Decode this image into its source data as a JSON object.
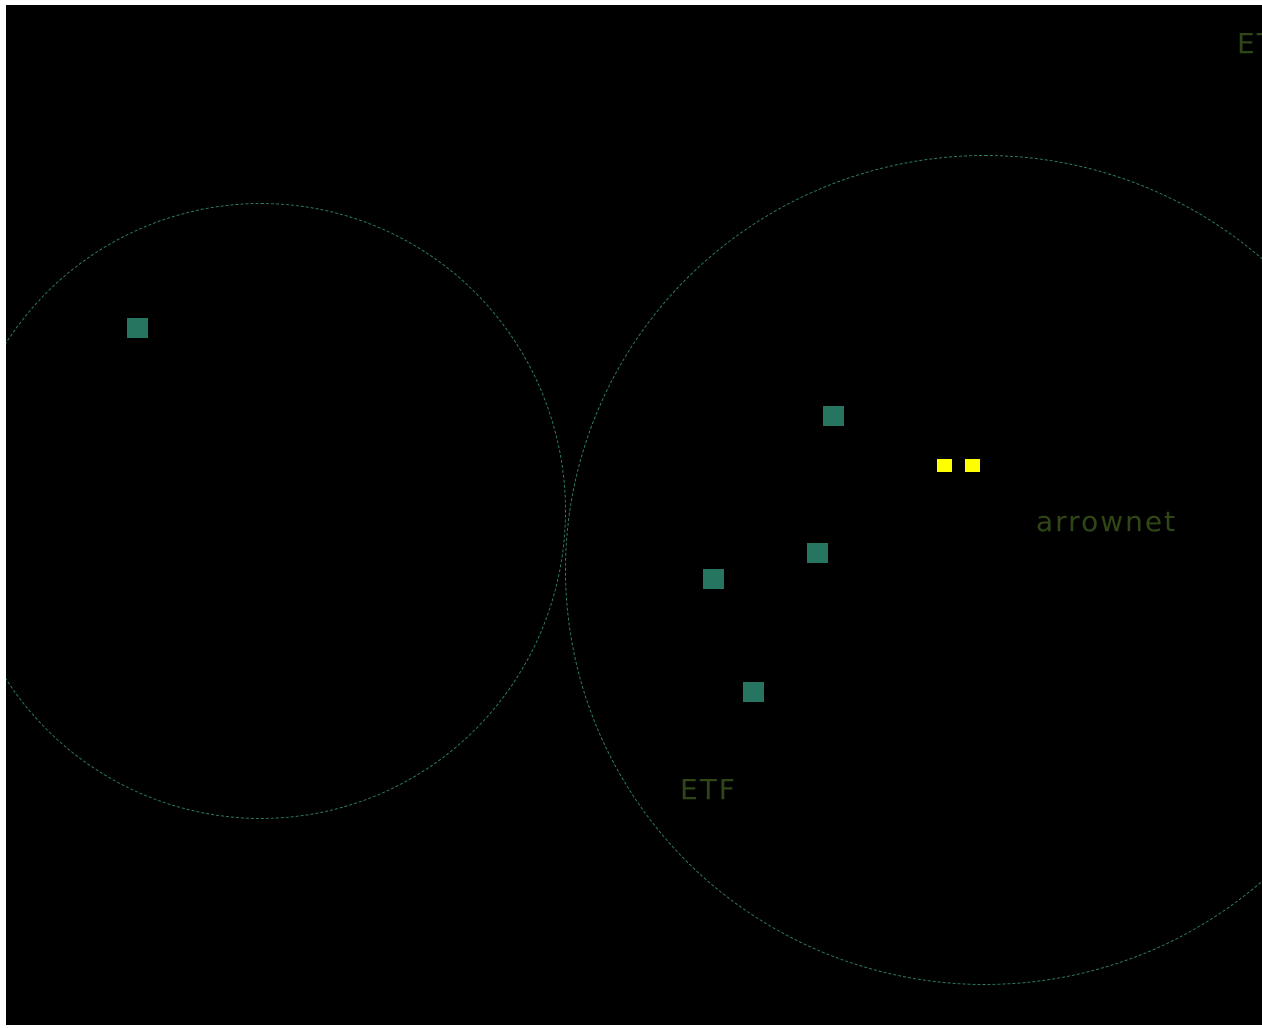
{
  "colors": {
    "background": "#000000",
    "ring": "#2e7d6a",
    "node": "#267560",
    "player": "#ffff00",
    "label": "#2f4616"
  },
  "labels": {
    "top_right": "ET",
    "arrownet": "arrownet",
    "etf": "ETF"
  },
  "nodes": [
    {
      "id": "node-1",
      "kind": "npc"
    },
    {
      "id": "node-2",
      "kind": "npc"
    },
    {
      "id": "node-3",
      "kind": "npc"
    },
    {
      "id": "node-4",
      "kind": "npc"
    },
    {
      "id": "node-5",
      "kind": "npc"
    },
    {
      "id": "player-1",
      "kind": "player"
    },
    {
      "id": "player-2",
      "kind": "player"
    }
  ]
}
